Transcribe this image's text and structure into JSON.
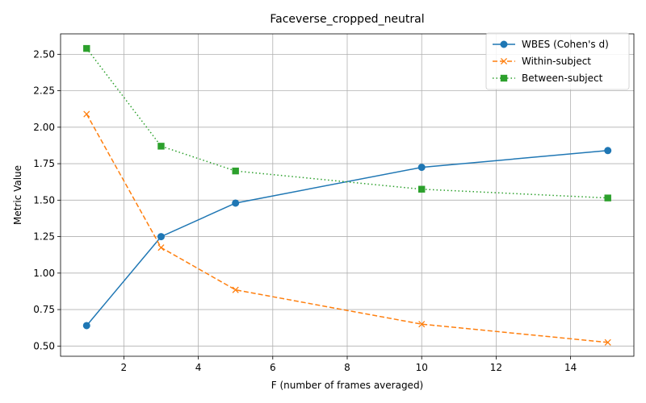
{
  "chart_data": {
    "type": "line",
    "title": "Faceverse_cropped_neutral",
    "xlabel": "F (number of frames averaged)",
    "ylabel": "Metric Value",
    "xlim": [
      0.3,
      15.7
    ],
    "ylim": [
      0.43,
      2.64
    ],
    "xticks": [
      2,
      4,
      6,
      8,
      10,
      12,
      14
    ],
    "yticks": [
      0.5,
      0.75,
      1.0,
      1.25,
      1.5,
      1.75,
      2.0,
      2.25,
      2.5
    ],
    "grid": true,
    "legend_position": "top-right",
    "x": [
      1,
      3,
      5,
      10,
      15
    ],
    "series": [
      {
        "name": "WBES (Cohen's d)",
        "color": "#1f77b4",
        "linestyle": "solid",
        "marker": "circle",
        "values": [
          0.64,
          1.25,
          1.48,
          1.725,
          1.84
        ]
      },
      {
        "name": "Within-subject",
        "color": "#ff7f0e",
        "linestyle": "dashed",
        "marker": "x",
        "values": [
          2.09,
          1.175,
          0.885,
          0.65,
          0.525
        ]
      },
      {
        "name": "Between-subject",
        "color": "#2ca02c",
        "linestyle": "dotted",
        "marker": "square",
        "values": [
          2.54,
          1.87,
          1.7,
          1.575,
          1.515
        ]
      }
    ]
  }
}
